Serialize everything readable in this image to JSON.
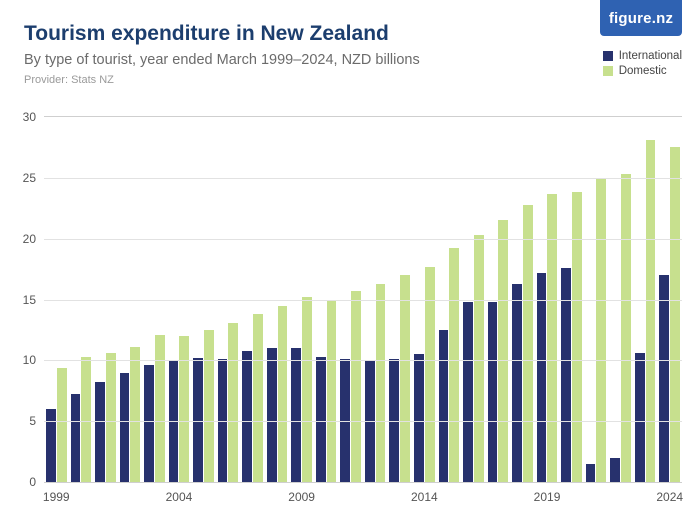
{
  "logo": {
    "text": "figure.nz",
    "bg": "#2f62b2"
  },
  "title": {
    "text": "Tourism expenditure in New Zealand",
    "color": "#1c3e6e"
  },
  "subtitle": {
    "text": "By type of tourist, year ended March 1999–2024, NZD billions",
    "color": "#6b6b6b"
  },
  "provider": {
    "text": "Provider: Stats NZ",
    "color": "#9a9a9a"
  },
  "legend": {
    "items": [
      {
        "label": "International",
        "color": "#27316d"
      },
      {
        "label": "Domestic",
        "color": "#c7e08e"
      }
    ],
    "text_color": "#444444"
  },
  "chart": {
    "type": "bar",
    "ylim": [
      0,
      30
    ],
    "ytick_step": 5,
    "yticks": [
      0,
      5,
      10,
      15,
      20,
      25,
      30
    ],
    "grid_color": "#e2e2e2",
    "axis_color": "#cfcfcf",
    "tick_label_color": "#555555",
    "background_color": "#ffffff",
    "xtick_years": [
      1999,
      2004,
      2009,
      2014,
      2019,
      2024
    ],
    "years": [
      1999,
      2000,
      2001,
      2002,
      2003,
      2004,
      2005,
      2006,
      2007,
      2008,
      2009,
      2010,
      2011,
      2012,
      2013,
      2014,
      2015,
      2016,
      2017,
      2018,
      2019,
      2020,
      2021,
      2022,
      2023,
      2024
    ],
    "series": [
      {
        "name": "International",
        "color": "#27316d",
        "values": [
          6.0,
          7.2,
          8.2,
          9.0,
          9.6,
          10.0,
          10.2,
          10.1,
          10.8,
          11.0,
          11.0,
          10.3,
          10.1,
          10.0,
          10.1,
          10.5,
          12.5,
          14.8,
          14.8,
          16.3,
          17.2,
          17.6,
          1.5,
          2.0,
          10.6,
          17.0
        ]
      },
      {
        "name": "Domestic",
        "color": "#c7e08e",
        "values": [
          9.4,
          10.3,
          10.6,
          11.1,
          12.1,
          12.0,
          12.5,
          13.1,
          13.8,
          14.5,
          15.2,
          15.0,
          15.7,
          16.3,
          17.0,
          17.7,
          19.2,
          20.3,
          21.5,
          22.8,
          23.7,
          23.8,
          25.0,
          25.3,
          28.1,
          27.5
        ]
      }
    ]
  }
}
